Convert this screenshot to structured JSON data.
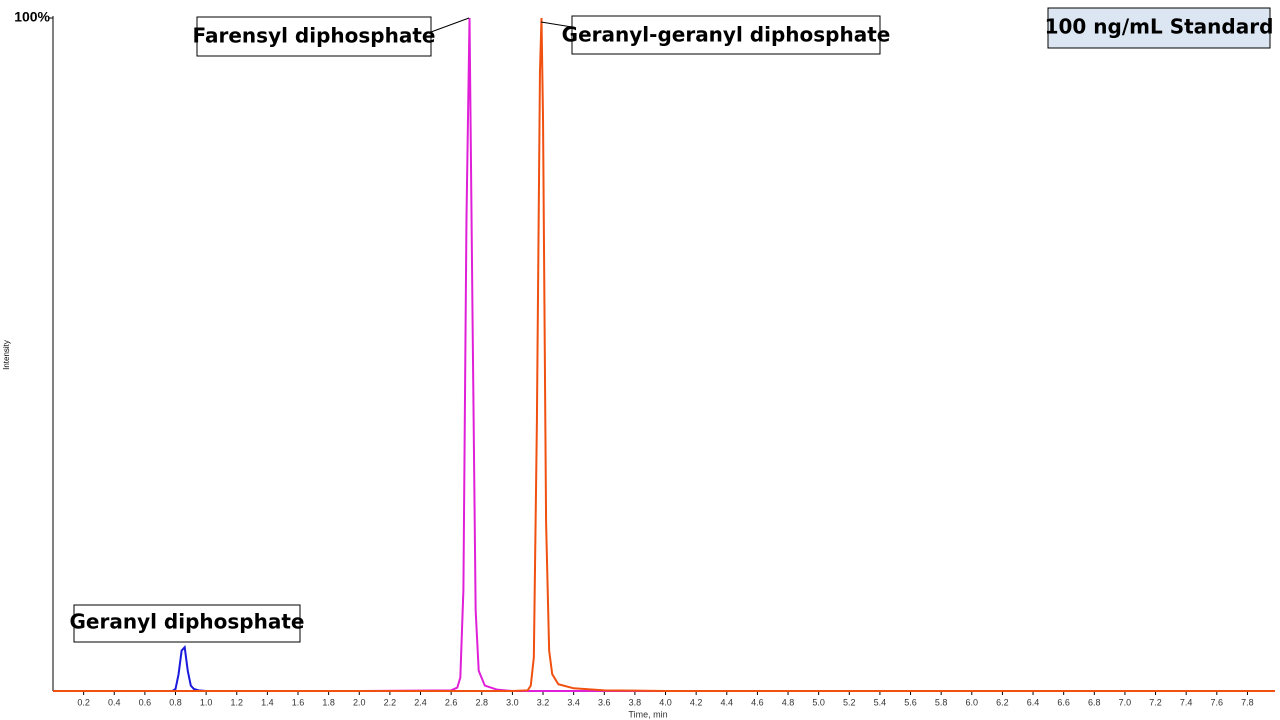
{
  "chart_data": {
    "type": "line",
    "x_label": "Time, min",
    "y_label": "Intensity",
    "badge": "100 ng/mL Standard",
    "annotations": [
      "Geranyl diphosphate",
      "Farensyl diphosphate",
      "Geranyl-geranyl diphosphate"
    ],
    "xlim": [
      0,
      7.98
    ],
    "ylim": [
      0,
      100
    ],
    "yticks": [
      {
        "value": 100,
        "label": "100%"
      }
    ],
    "xticks": [
      0.2,
      0.4,
      0.6,
      0.8,
      {
        "value": 1,
        "label": "1.0"
      },
      1.2,
      1.4,
      1.6,
      1.8,
      {
        "value": 2,
        "label": "2.0"
      },
      2.2,
      2.4,
      2.6,
      2.8,
      {
        "value": 3,
        "label": "3.0"
      },
      3.2,
      3.4,
      3.6,
      3.8,
      {
        "value": 4,
        "label": "4.0"
      },
      4.2,
      4.4,
      4.6,
      4.8,
      {
        "value": 5,
        "label": "5.0"
      },
      5.2,
      5.4,
      5.6,
      5.8,
      {
        "value": 6,
        "label": "6.0"
      },
      6.2,
      6.4,
      6.6,
      6.8,
      {
        "value": 7,
        "label": "7.0"
      },
      7.2,
      7.4,
      7.6,
      7.8
    ],
    "x": [
      0,
      0.5,
      0.78,
      0.8,
      0.82,
      0.84,
      0.86,
      0.88,
      0.9,
      0.92,
      0.95,
      1.0,
      2.0,
      2.6,
      2.64,
      2.66,
      2.68,
      2.7,
      2.72,
      2.74,
      2.76,
      2.78,
      2.82,
      2.9,
      3.0,
      3.1,
      3.12,
      3.14,
      3.16,
      3.18,
      3.19,
      3.2,
      3.22,
      3.24,
      3.26,
      3.3,
      3.4,
      3.6,
      4.0,
      7.98
    ],
    "series": [
      {
        "color": "#1a1adc",
        "values": [
          0,
          0,
          0,
          0.3,
          2.5,
          6.0,
          6.5,
          3.0,
          0.8,
          0.3,
          0.1,
          0,
          0,
          0,
          0,
          0,
          0,
          0,
          0,
          0,
          0,
          0,
          0,
          0,
          0,
          0,
          0,
          0,
          0,
          0,
          0,
          0,
          0,
          0,
          0,
          0,
          0,
          0,
          0,
          0
        ]
      },
      {
        "color": "#e020d8",
        "values": [
          0,
          0,
          0,
          0,
          0,
          0,
          0,
          0,
          0,
          0,
          0,
          0,
          0,
          0.1,
          0.5,
          2,
          15,
          70,
          100,
          55,
          12,
          3,
          0.8,
          0.2,
          0,
          0,
          0,
          0,
          0,
          0,
          0,
          0,
          0,
          0,
          0,
          0,
          0,
          0,
          0,
          0
        ]
      },
      {
        "color": "#f05010",
        "values": [
          0,
          0,
          0,
          0,
          0,
          0,
          0,
          0,
          0,
          0,
          0,
          0,
          0,
          0,
          0,
          0,
          0,
          0,
          0,
          0,
          0,
          0,
          0,
          0,
          0,
          0.1,
          0.8,
          5,
          40,
          92,
          100,
          85,
          25,
          6,
          2.5,
          1,
          0.4,
          0.1,
          0,
          0
        ]
      }
    ]
  }
}
